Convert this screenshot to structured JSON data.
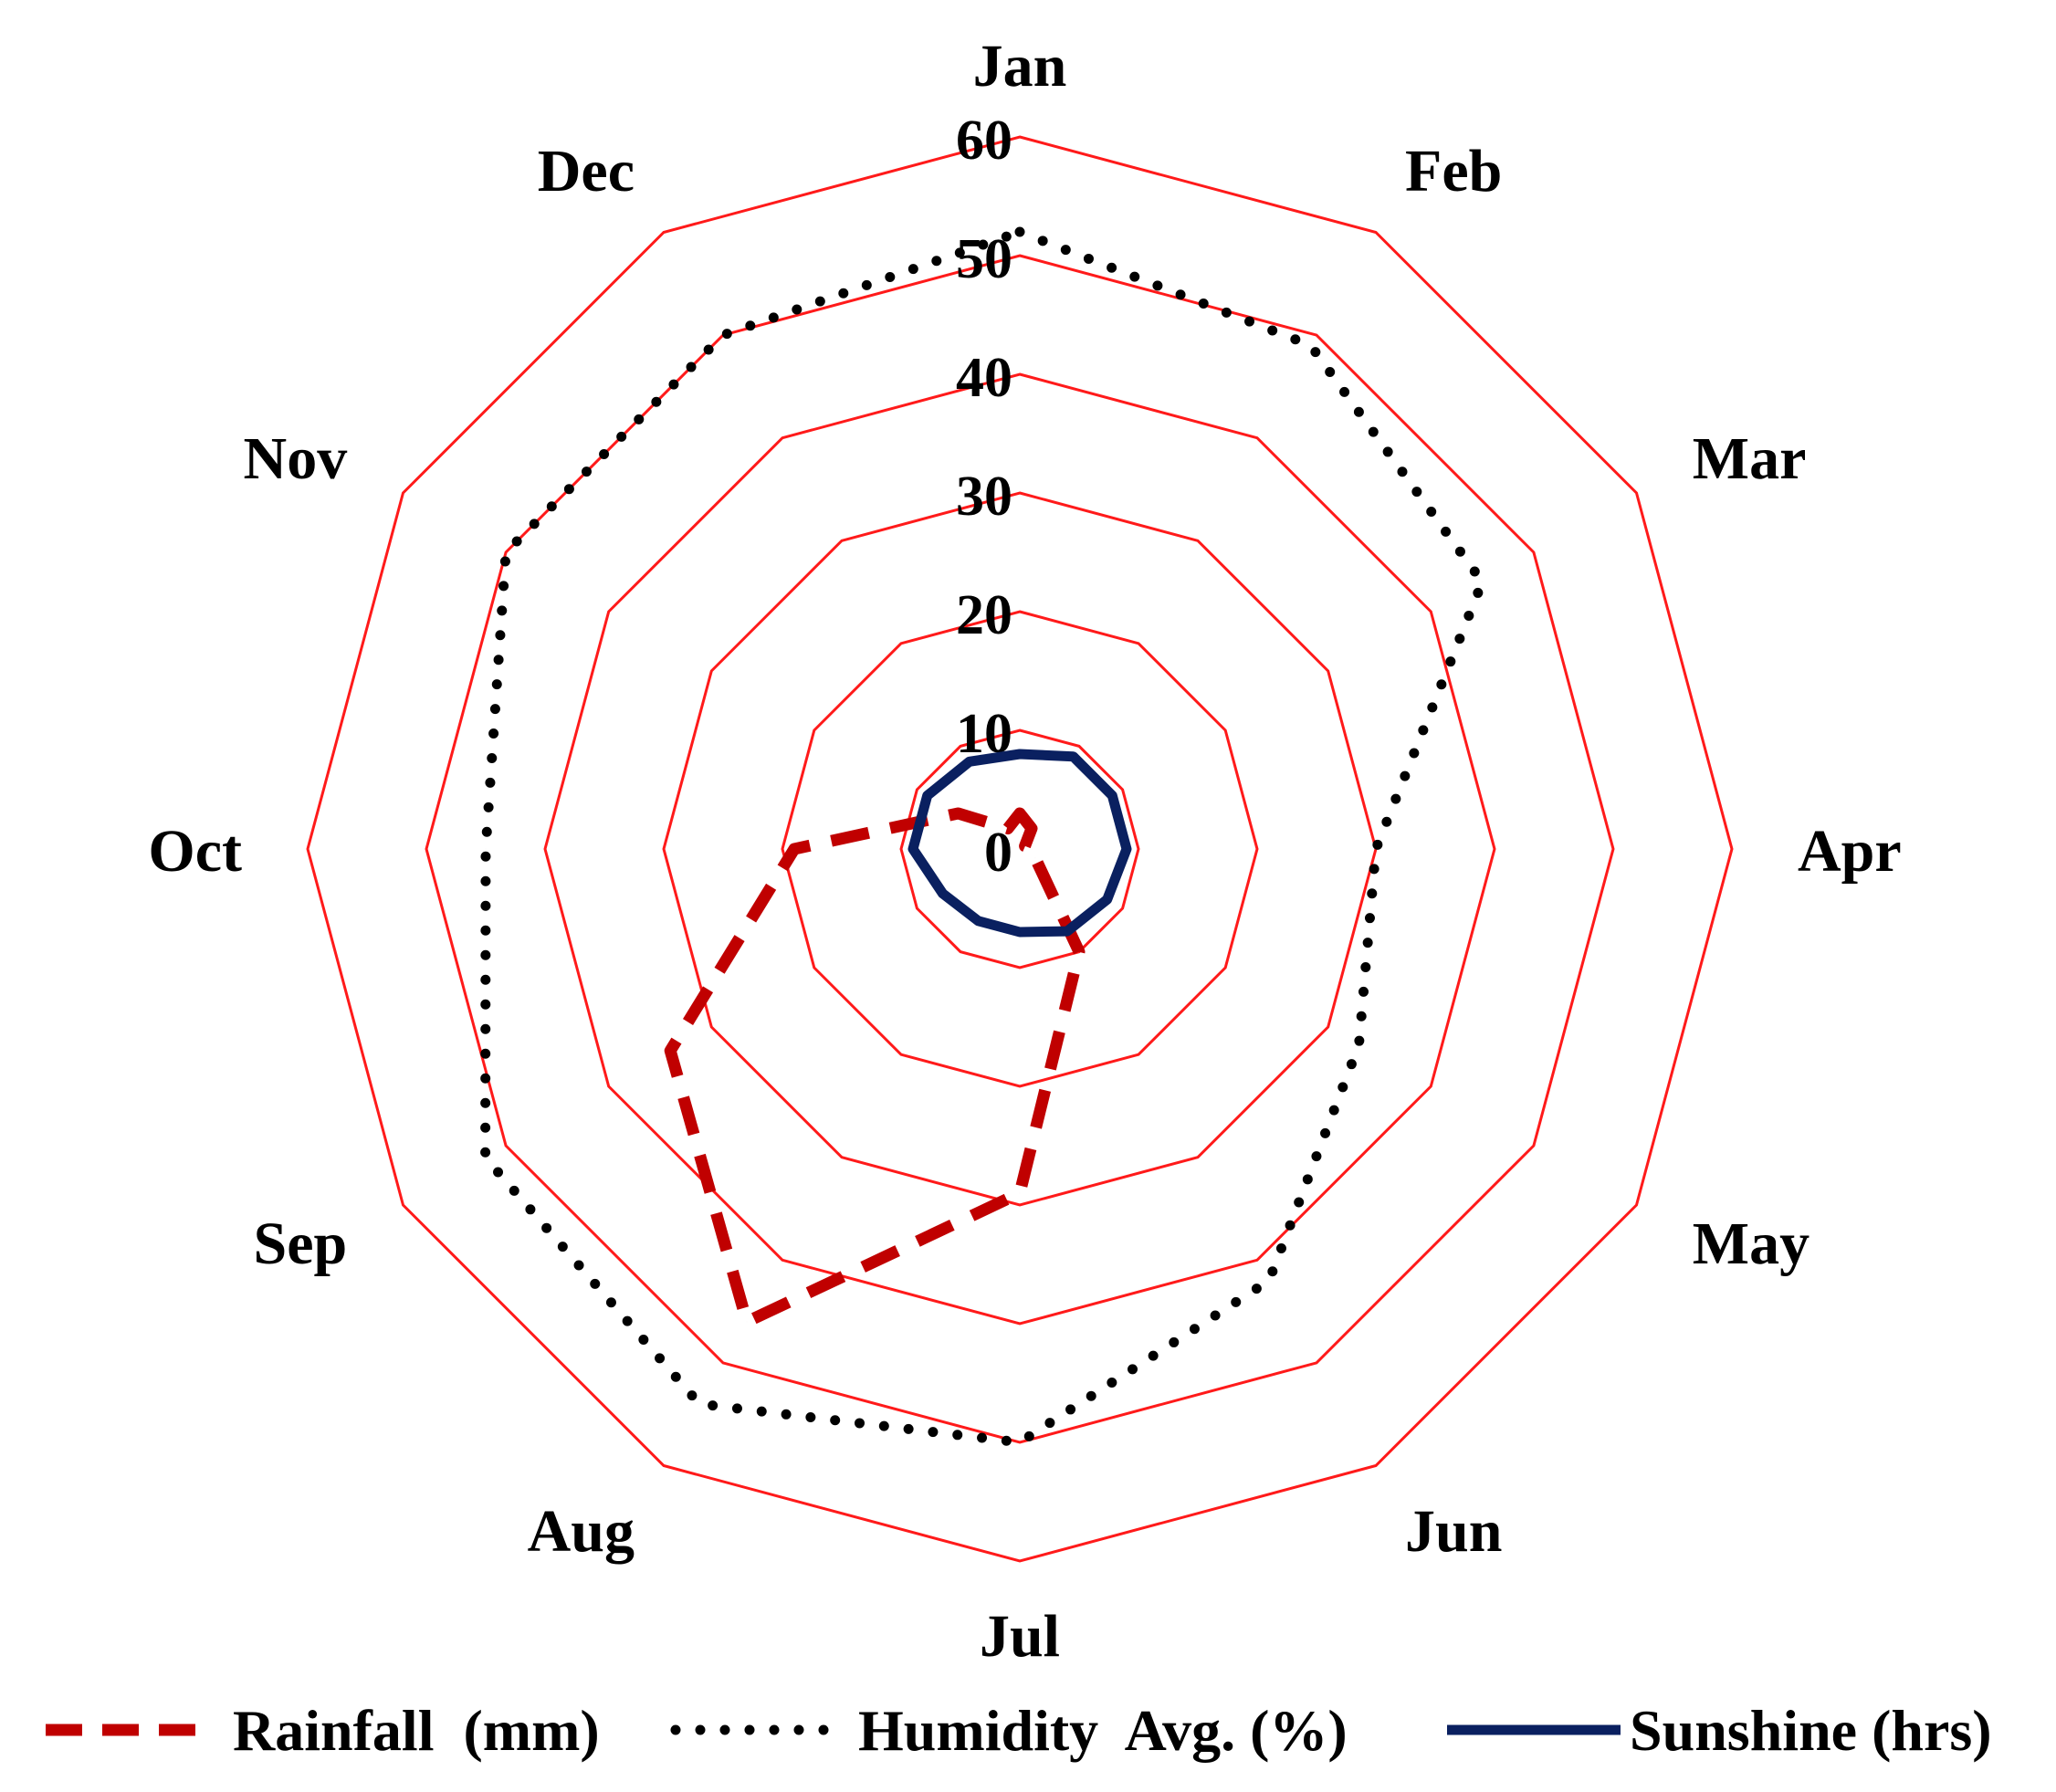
{
  "chart_data": {
    "type": "radar",
    "categories": [
      "Jan",
      "Feb",
      "Mar",
      "Apr",
      "May",
      "Jun",
      "Jul",
      "Aug",
      "Sep",
      "Oct",
      "Nov",
      "Dec"
    ],
    "radial_ticks": [
      "0",
      "10",
      "20",
      "30",
      "40",
      "50",
      "60"
    ],
    "rlim": [
      0,
      60
    ],
    "grid": true,
    "grid_color": "#ff1a1a",
    "legend_position": "bottom",
    "series": [
      {
        "name": "Rainfall  (mm)",
        "style": "dashed",
        "color": "#c00000",
        "values": [
          3,
          2,
          0.5,
          1,
          1.5,
          10,
          29,
          46,
          34,
          19,
          6,
          2
        ]
      },
      {
        "name": "Humidity  Avg. (%)",
        "style": "dotted",
        "color": "#000000",
        "values": [
          52,
          49,
          45,
          30,
          33,
          42,
          50,
          54,
          52,
          45,
          50,
          50
        ]
      },
      {
        "name": "Sunshine (hrs)",
        "style": "solid",
        "color": "#0a2060",
        "values": [
          8,
          9,
          9,
          9,
          8.5,
          8,
          7,
          7,
          7.5,
          9,
          9,
          8.5
        ]
      }
    ]
  }
}
